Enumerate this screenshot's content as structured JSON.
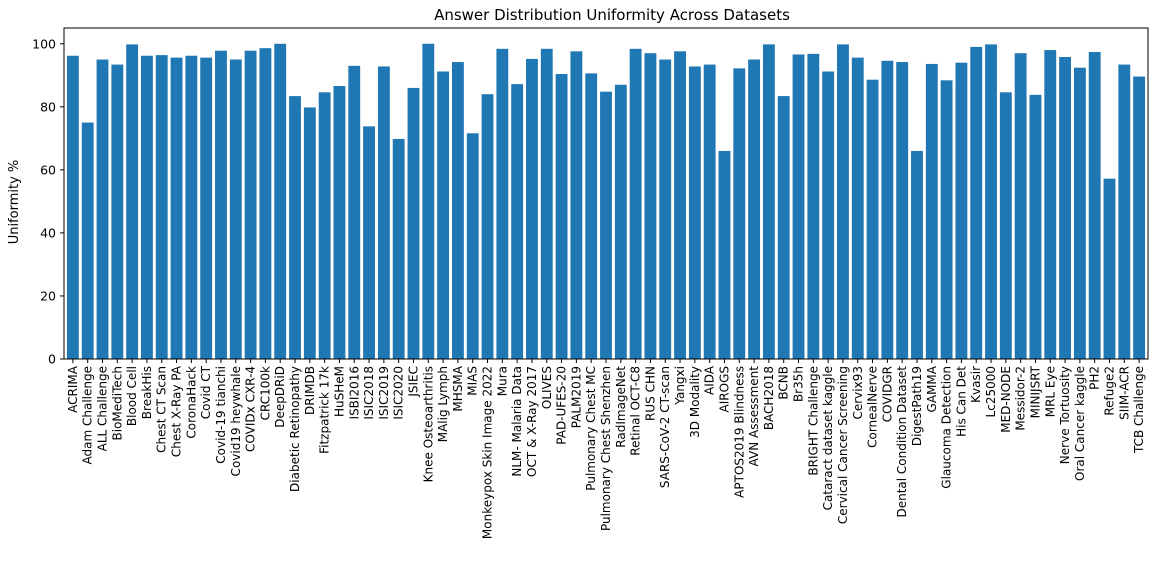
{
  "chart_data": {
    "type": "bar",
    "title": "Answer Distribution Uniformity Across Datasets",
    "xlabel": "",
    "ylabel": "Uniformity %",
    "ylim": [
      0,
      105
    ],
    "yticks": [
      0,
      20,
      40,
      60,
      80,
      100
    ],
    "bar_color": "#1f77b4",
    "grid": false,
    "categories": [
      "ACRIMA",
      "Adam Challenge",
      "ALL Challenge",
      "BioMediTech",
      "Blood Cell",
      "BreakHis",
      "Chest CT Scan",
      "Chest X-Ray PA",
      "CoronaHack",
      "Covid CT",
      "Covid-19 tianchi",
      "Covid19 heywhale",
      "COVIDx CXR-4",
      "CRC100k",
      "DeepDRiD",
      "Diabetic Retinopathy",
      "DRIMDB",
      "Fitzpatrick 17k",
      "HuSHeM",
      "ISBI2016",
      "ISIC2018",
      "ISIC2019",
      "ISIC2020",
      "JSIEC",
      "Knee Osteoarthritis",
      "MAlig Lymph",
      "MHSMA",
      "MIAS",
      "Monkeypox Skin Image 2022",
      "Mura",
      "NLM- Malaria Data",
      "OCT & X-Ray 2017",
      "OLIVES",
      "PAD-UFES-20",
      "PALM2019",
      "Pulmonary Chest MC",
      "Pulmonary Chest Shenzhen",
      "RadImageNet",
      "Retinal OCT-C8",
      "RUS CHN",
      "SARS-CoV-2 CT-scan",
      "Yangxi",
      "3D Modality",
      "AIDA",
      "AIROGS",
      "APTOS2019 Blindness",
      "AVN Assessment",
      "BACH2018",
      "BCNB",
      "Br35h",
      "BRIGHT Challenge",
      "Cataract dataset kaggle",
      "Cervical Cancer Screening",
      "Cervix93",
      "CornealNerve",
      "COVIDGR",
      "Dental Condition Dataset",
      "DigestPath19",
      "GAMMA",
      "Glaucoma Detection",
      "His Can Det",
      "Kvasir",
      "Lc25000",
      "MED-NODE",
      "Messidor-2",
      "MINIJSRT",
      "MRL Eye",
      "Nerve Tortuosity",
      "Oral Cancer kaggle",
      "PH2",
      "Refuge2",
      "SIIM-ACR",
      "TCB Challenge"
    ],
    "values": [
      96.2,
      75.0,
      95.0,
      93.4,
      99.8,
      96.2,
      96.4,
      95.6,
      96.2,
      95.6,
      97.8,
      95.0,
      97.8,
      98.6,
      100,
      83.4,
      79.8,
      84.6,
      86.6,
      93.0,
      73.8,
      92.8,
      69.8,
      86.0,
      100,
      91.2,
      94.2,
      71.6,
      84.0,
      98.4,
      87.2,
      95.2,
      98.4,
      90.4,
      97.6,
      90.6,
      84.8,
      87.0,
      98.4,
      97.0,
      95.0,
      97.6,
      92.8,
      93.4,
      66.0,
      92.2,
      95.0,
      99.8,
      83.4,
      96.6,
      96.8,
      91.2,
      99.8,
      95.6,
      88.6,
      94.6,
      94.2,
      66.0,
      93.6,
      88.4,
      94.0,
      99.0,
      99.8,
      84.6,
      97.0,
      83.8,
      98.0,
      95.8,
      92.4,
      97.4,
      57.2,
      93.4,
      89.6
    ]
  }
}
